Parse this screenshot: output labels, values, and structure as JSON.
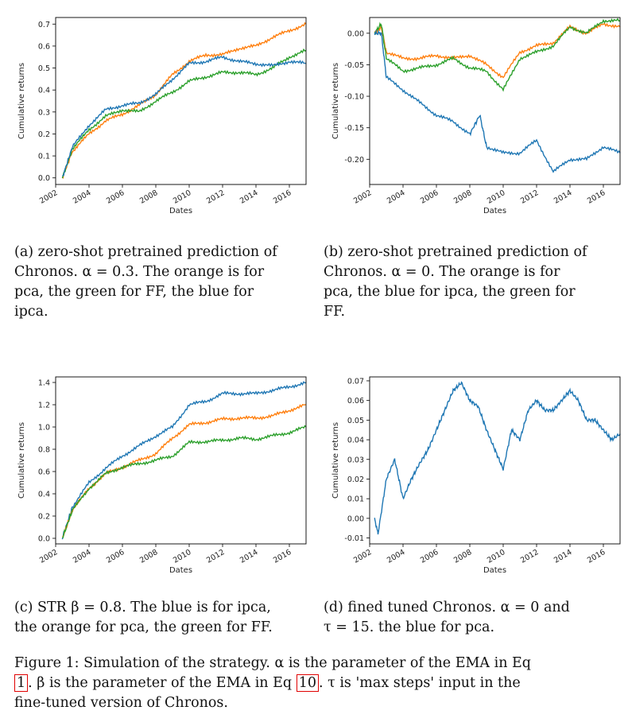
{
  "colors": {
    "blue": "#1f77b4",
    "orange": "#ff7f0e",
    "green": "#2ca02c"
  },
  "chart_data": [
    {
      "type": "line",
      "xlabel": "Dates",
      "ylabel": "Cumulative returns",
      "xlim": [
        2002,
        2017
      ],
      "ylim": [
        -0.03,
        0.73
      ],
      "xticks": [
        "2002",
        "2004",
        "2006",
        "2008",
        "2010",
        "2012",
        "2014",
        "2016"
      ],
      "yticks": [
        "0.0",
        "0.1",
        "0.2",
        "0.3",
        "0.4",
        "0.5",
        "0.6",
        "0.7"
      ],
      "series": [
        {
          "color": "orange",
          "x": [
            2002.4,
            2003,
            2004,
            2005,
            2006,
            2007,
            2008,
            2009,
            2010,
            2011,
            2012,
            2013,
            2014,
            2015,
            2016,
            2017
          ],
          "y": [
            0.0,
            0.12,
            0.2,
            0.26,
            0.29,
            0.33,
            0.38,
            0.47,
            0.53,
            0.56,
            0.56,
            0.59,
            0.6,
            0.64,
            0.67,
            0.7
          ]
        },
        {
          "color": "green",
          "x": [
            2002.4,
            2003,
            2004,
            2005,
            2006,
            2007,
            2008,
            2009,
            2010,
            2011,
            2012,
            2013,
            2014,
            2015,
            2016,
            2017
          ],
          "y": [
            0.0,
            0.13,
            0.22,
            0.28,
            0.31,
            0.3,
            0.35,
            0.39,
            0.44,
            0.46,
            0.48,
            0.48,
            0.47,
            0.5,
            0.55,
            0.58
          ]
        },
        {
          "color": "blue",
          "x": [
            2002.4,
            2003,
            2004,
            2005,
            2006,
            2007,
            2008,
            2009,
            2010,
            2011,
            2012,
            2013,
            2014,
            2015,
            2016,
            2017
          ],
          "y": [
            0.0,
            0.14,
            0.24,
            0.31,
            0.33,
            0.34,
            0.38,
            0.45,
            0.52,
            0.53,
            0.55,
            0.53,
            0.52,
            0.51,
            0.53,
            0.52
          ]
        }
      ]
    },
    {
      "type": "line",
      "xlabel": "Dates",
      "ylabel": "Cumulative returns",
      "xlim": [
        2002,
        2017
      ],
      "ylim": [
        -0.24,
        0.025
      ],
      "xticks": [
        "2002",
        "2004",
        "2006",
        "2008",
        "2010",
        "2012",
        "2014",
        "2016"
      ],
      "yticks": [
        "0.00",
        "-0.05",
        "-0.10",
        "-0.15",
        "-0.20"
      ],
      "series": [
        {
          "color": "orange",
          "x": [
            2002.3,
            2002.7,
            2003,
            2004,
            2005,
            2006,
            2007,
            2008,
            2009,
            2010,
            2011,
            2012,
            2013,
            2014,
            2015,
            2016,
            2017
          ],
          "y": [
            0.0,
            0.01,
            -0.03,
            -0.04,
            -0.04,
            -0.035,
            -0.04,
            -0.035,
            -0.05,
            -0.07,
            -0.03,
            -0.02,
            -0.015,
            0.01,
            0.0,
            0.015,
            0.01
          ]
        },
        {
          "color": "green",
          "x": [
            2002.3,
            2002.7,
            2003,
            2004,
            2005,
            2006,
            2007,
            2008,
            2009,
            2010,
            2011,
            2012,
            2013,
            2014,
            2015,
            2016,
            2017
          ],
          "y": [
            0.0,
            0.015,
            -0.04,
            -0.06,
            -0.055,
            -0.05,
            -0.04,
            -0.055,
            -0.06,
            -0.09,
            -0.04,
            -0.03,
            -0.02,
            0.01,
            0.0,
            0.02,
            0.02
          ]
        },
        {
          "color": "blue",
          "x": [
            2002.3,
            2002.7,
            2003,
            2004,
            2005,
            2006,
            2007,
            2008,
            2008.6,
            2009,
            2010,
            2011,
            2012,
            2013,
            2014,
            2015,
            2016,
            2017
          ],
          "y": [
            0.0,
            0.0,
            -0.07,
            -0.09,
            -0.11,
            -0.13,
            -0.14,
            -0.16,
            -0.13,
            -0.18,
            -0.19,
            -0.19,
            -0.17,
            -0.22,
            -0.2,
            -0.2,
            -0.18,
            -0.19
          ]
        }
      ]
    },
    {
      "type": "line",
      "xlabel": "Dates",
      "ylabel": "Cumulative returns",
      "xlim": [
        2002,
        2017
      ],
      "ylim": [
        -0.05,
        1.45
      ],
      "xticks": [
        "2002",
        "2004",
        "2006",
        "2008",
        "2010",
        "2012",
        "2014",
        "2016"
      ],
      "yticks": [
        "0.0",
        "0.2",
        "0.4",
        "0.6",
        "0.8",
        "1.0",
        "1.2",
        "1.4"
      ],
      "series": [
        {
          "color": "blue",
          "x": [
            2002.4,
            2003,
            2004,
            2005,
            2006,
            2007,
            2008,
            2009,
            2010,
            2011,
            2012,
            2013,
            2014,
            2015,
            2016,
            2017
          ],
          "y": [
            0.0,
            0.28,
            0.5,
            0.63,
            0.74,
            0.83,
            0.92,
            1.0,
            1.2,
            1.23,
            1.3,
            1.3,
            1.3,
            1.33,
            1.36,
            1.4
          ]
        },
        {
          "color": "orange",
          "x": [
            2002.4,
            2003,
            2004,
            2005,
            2006,
            2007,
            2008,
            2009,
            2010,
            2011,
            2012,
            2013,
            2014,
            2015,
            2016,
            2017
          ],
          "y": [
            0.0,
            0.25,
            0.45,
            0.58,
            0.64,
            0.7,
            0.76,
            0.9,
            1.02,
            1.04,
            1.07,
            1.08,
            1.08,
            1.1,
            1.15,
            1.2
          ]
        },
        {
          "color": "green",
          "x": [
            2002.4,
            2003,
            2004,
            2005,
            2006,
            2007,
            2008,
            2009,
            2010,
            2011,
            2012,
            2013,
            2014,
            2015,
            2016,
            2017
          ],
          "y": [
            0.0,
            0.25,
            0.45,
            0.58,
            0.64,
            0.67,
            0.7,
            0.74,
            0.86,
            0.87,
            0.88,
            0.9,
            0.89,
            0.92,
            0.95,
            1.0
          ]
        }
      ]
    },
    {
      "type": "line",
      "xlabel": "Dates",
      "ylabel": "Cumulative returns",
      "xlim": [
        2002,
        2017
      ],
      "ylim": [
        -0.013,
        0.072
      ],
      "xticks": [
        "2002",
        "2004",
        "2006",
        "2008",
        "2010",
        "2012",
        "2014",
        "2016"
      ],
      "yticks": [
        "-0.01",
        "0.00",
        "0.01",
        "0.02",
        "0.03",
        "0.04",
        "0.05",
        "0.06",
        "0.07"
      ],
      "series": [
        {
          "color": "blue",
          "x": [
            2002.3,
            2002.5,
            2003,
            2003.5,
            2004,
            2004.5,
            2005,
            2005.5,
            2006,
            2006.5,
            2007,
            2007.5,
            2008,
            2008.5,
            2009,
            2009.5,
            2010,
            2010.5,
            2011,
            2011.5,
            2012,
            2012.5,
            2013,
            2013.5,
            2014,
            2014.5,
            2015,
            2015.5,
            2016,
            2016.5,
            2017
          ],
          "y": [
            0.0,
            -0.008,
            0.02,
            0.03,
            0.01,
            0.02,
            0.028,
            0.035,
            0.045,
            0.055,
            0.065,
            0.069,
            0.06,
            0.057,
            0.045,
            0.035,
            0.025,
            0.045,
            0.04,
            0.055,
            0.06,
            0.055,
            0.055,
            0.06,
            0.065,
            0.06,
            0.05,
            0.05,
            0.045,
            0.04,
            0.043
          ]
        }
      ]
    }
  ],
  "captions": {
    "a": {
      "lines": [
        "(a) zero-shot pretrained prediction of",
        "Chronos.  α = 0.3.  The orange is for",
        "pca, the green for FF, the blue for",
        "ipca."
      ]
    },
    "b": {
      "lines": [
        "(b) zero-shot pretrained prediction of",
        "Chronos.  α = 0.  The orange is for",
        "pca, the blue for ipca, the green for",
        "FF."
      ]
    },
    "c": {
      "lines": [
        "(c) STR β = 0.8.  The blue is for ipca,",
        "the orange for pca, the green for FF."
      ]
    },
    "d": {
      "lines": [
        "(d) fined tuned Chronos.  α = 0 and",
        "τ = 15.  the blue for pca."
      ]
    }
  },
  "figure_caption": {
    "part1": "Figure 1: Simulation of the strategy.  α is the parameter of the EMA in Eq",
    "ref1": "1",
    "part2": ".  β is the parameter of the EMA in Eq ",
    "ref2": "10",
    "part3": ".  τ is 'max steps' input in the",
    "part4": "fine-tuned version of Chronos."
  }
}
